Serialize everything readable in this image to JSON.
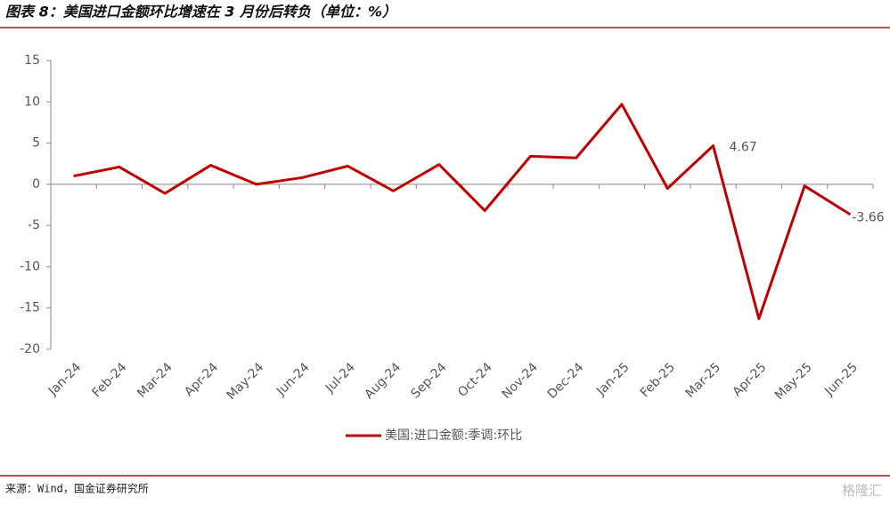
{
  "chart_data": {
    "type": "line",
    "title": "图表 8：美国进口金额环比增速在 3 月份后转负（单位：%）",
    "source": "来源：Wind，国金证券研究所",
    "watermark": "格隆汇",
    "categories": [
      "Jan-24",
      "Feb-24",
      "Mar-24",
      "Apr-24",
      "May-24",
      "Jun-24",
      "Jul-24",
      "Aug-24",
      "Sep-24",
      "Oct-24",
      "Nov-24",
      "Dec-24",
      "Jan-25",
      "Feb-25",
      "Mar-25",
      "Apr-25",
      "May-25",
      "Jun-25"
    ],
    "series": [
      {
        "name": "美国:进口金额:季调:环比",
        "color": "#c00000",
        "values": [
          1.0,
          2.1,
          -1.1,
          2.3,
          0.0,
          0.8,
          2.2,
          -0.8,
          2.4,
          -3.2,
          3.4,
          3.2,
          9.7,
          -0.5,
          4.67,
          -16.3,
          -0.2,
          -3.66
        ],
        "value_labels": [
          null,
          null,
          null,
          null,
          null,
          null,
          null,
          null,
          null,
          null,
          null,
          null,
          null,
          null,
          "4.67",
          null,
          null,
          "-3.66"
        ]
      }
    ],
    "ylim": [
      -20,
      15
    ],
    "yticks": [
      -20,
      -15,
      -10,
      -5,
      0,
      5,
      10,
      15
    ],
    "legend": "bottom"
  }
}
